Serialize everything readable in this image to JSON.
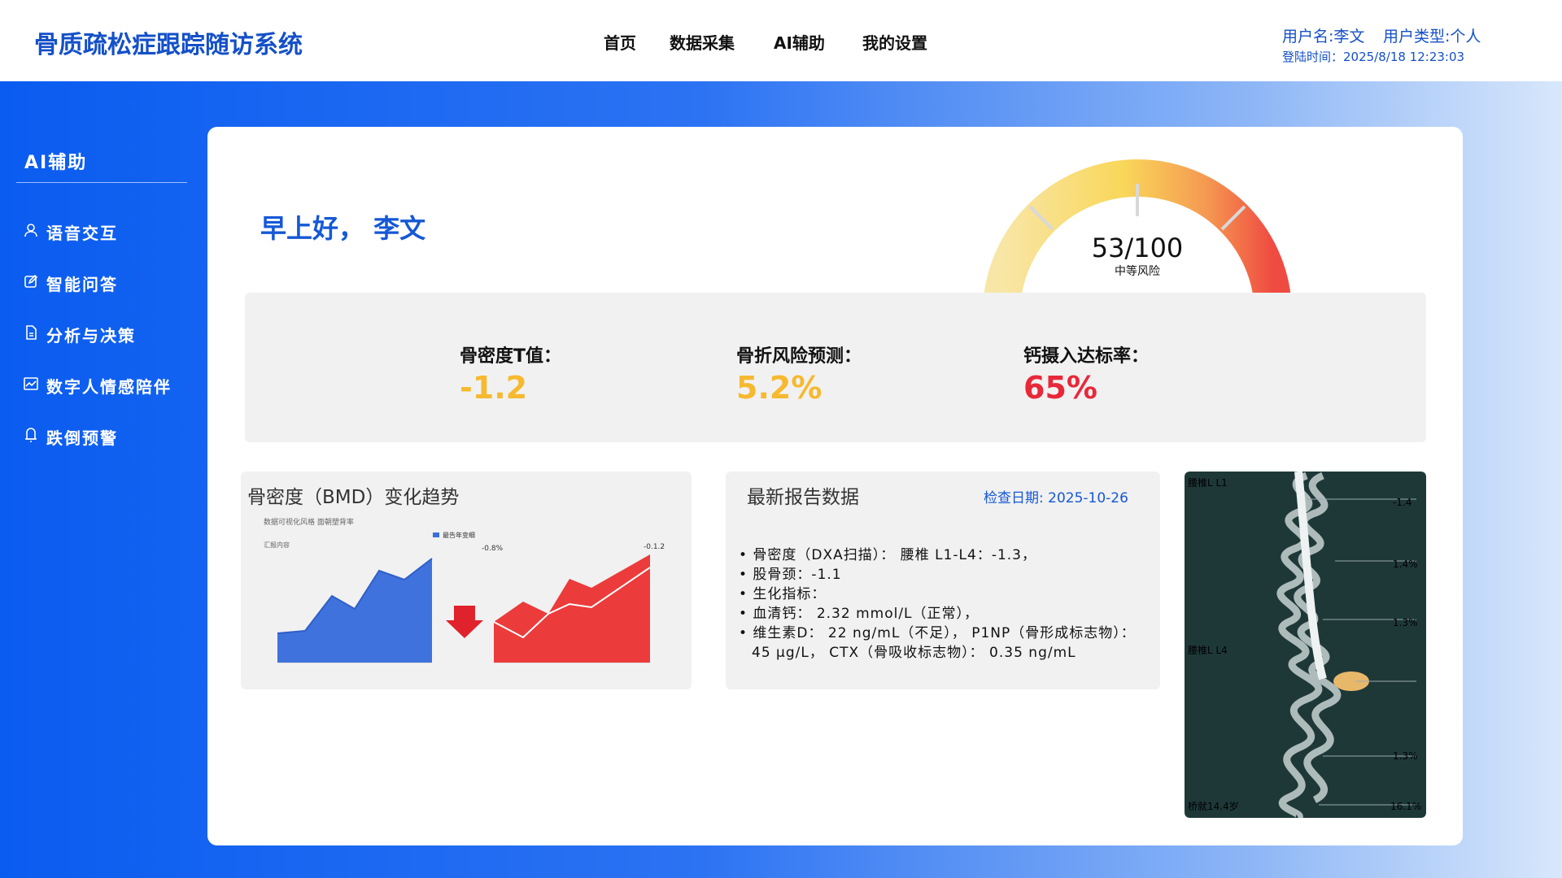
{
  "header": {
    "title": "骨质疏松症跟踪随访系统",
    "nav": [
      "首页",
      "数据采集",
      "AI辅助",
      "我的设置"
    ],
    "user": {
      "name": "用户名:李文",
      "type": "用户类型:个人",
      "login": "登陆时间：2025/8/18 12:23:03"
    }
  },
  "sidebar": {
    "title": "AI辅助",
    "items": [
      "语音交互",
      "智能问答",
      "分析与决策",
      "数字人情感陪伴",
      "跌倒预警"
    ]
  },
  "greeting": "早上好， 李文",
  "gauge": {
    "score": "53/100",
    "level": "中等风险"
  },
  "stats": [
    {
      "label": "骨密度T值：",
      "value": "-1.2"
    },
    {
      "label": "骨折风险预测：",
      "value": "5.2%"
    },
    {
      "label": "钙摄入达标率：",
      "value": "65%"
    }
  ],
  "bmd_card": {
    "title": "骨密度（BMD）变化趋势",
    "caption": "数据可视化风格   面朝塑背率",
    "y_label": "汇报内容",
    "legend": "最告年变细",
    "left_note": "-0.8%",
    "right_note": "-0.1.2"
  },
  "report": {
    "title": "最新报告数据",
    "date": "检查日期:  2025-10-26",
    "lines": [
      "• 骨密度（DXA扫描）：  腰椎 L1-L4：-1.3，",
      "• 股骨颈：-1.1",
      "• 生化指标：",
      "• 血清钙：  2.32 mmol/L（正常），",
      "• 维生素D：  22 ng/mL（不足），  P1NP（骨形成标志物）：",
      "45 μg/L，  CTX（骨吸收标志物）：  0.35 ng/mL"
    ]
  },
  "spine": {
    "labels": [
      "腰椎L L1",
      "-1.4",
      "1.4%",
      "1.3%",
      "腰椎L L4",
      "1.3%",
      "16.1%",
      "桥就14.4岁"
    ]
  }
}
